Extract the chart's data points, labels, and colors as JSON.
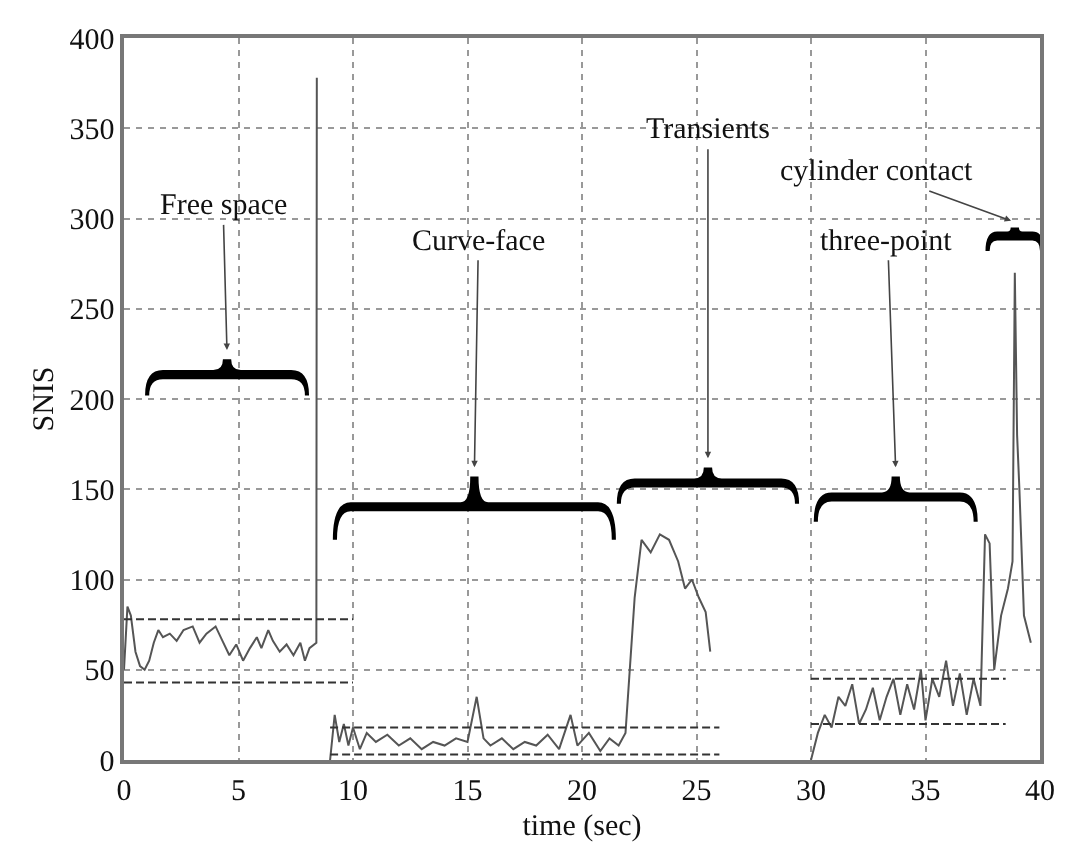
{
  "chart_data": {
    "type": "line",
    "xlabel": "time (sec)",
    "ylabel": "SNIS",
    "xlim": [
      0,
      40
    ],
    "xticks": [
      0,
      5,
      10,
      15,
      20,
      25,
      30,
      35,
      40
    ],
    "ylim": [
      0,
      400
    ],
    "yticks": [
      0,
      50,
      100,
      150,
      200,
      250,
      300,
      350,
      400
    ],
    "grid": true,
    "marker": "none",
    "series": [
      {
        "color": "#555555",
        "line_style": "solid",
        "x": [
          0,
          0.15,
          0.3,
          0.5,
          0.7,
          0.9,
          1.1,
          1.3,
          1.5,
          1.7,
          2,
          2.3,
          2.6,
          3,
          3.3,
          3.6,
          4,
          4.3,
          4.6,
          4.9,
          5.2,
          5.5,
          5.8,
          6,
          6.3,
          6.5,
          6.8,
          7.1,
          7.4,
          7.7,
          7.9,
          8.1,
          8.4,
          8.42,
          8.7,
          9,
          9.2,
          9.4,
          9.6,
          9.8,
          10,
          10.3,
          10.6,
          11,
          11.5,
          12,
          12.5,
          13,
          13.5,
          14,
          14.5,
          15,
          15.4,
          15.7,
          16,
          16.5,
          17,
          17.5,
          18,
          18.5,
          19,
          19.5,
          19.8,
          20.3,
          20.8,
          21.2,
          21.6,
          21.9,
          22.3,
          22.6,
          23,
          23.4,
          23.8,
          24.2,
          24.5,
          24.8,
          25.1,
          25.4,
          25.6,
          28,
          30,
          30.3,
          30.6,
          30.9,
          31.2,
          31.5,
          31.8,
          32.1,
          32.4,
          32.7,
          33,
          33.3,
          33.6,
          33.9,
          34.2,
          34.5,
          34.8,
          35,
          35.3,
          35.6,
          35.9,
          36.2,
          36.5,
          36.8,
          37.1,
          37.4,
          37.6,
          37.8,
          38,
          38.3,
          38.6,
          38.8,
          38.9,
          39,
          39.1,
          39.3,
          39.6
        ],
        "values": [
          50,
          85,
          80,
          60,
          52,
          50,
          55,
          65,
          72,
          68,
          70,
          66,
          72,
          74,
          65,
          70,
          74,
          66,
          58,
          64,
          55,
          62,
          68,
          62,
          72,
          66,
          60,
          64,
          58,
          65,
          55,
          62,
          65,
          378,
          null,
          0,
          25,
          10,
          20,
          8,
          18,
          6,
          15,
          10,
          14,
          8,
          12,
          6,
          10,
          8,
          12,
          10,
          35,
          12,
          8,
          12,
          6,
          10,
          8,
          14,
          6,
          25,
          8,
          15,
          5,
          12,
          8,
          15,
          90,
          122,
          115,
          125,
          122,
          110,
          95,
          100,
          90,
          82,
          60,
          null,
          0,
          15,
          25,
          18,
          35,
          30,
          42,
          20,
          28,
          40,
          22,
          35,
          45,
          25,
          42,
          28,
          50,
          22,
          45,
          35,
          55,
          30,
          48,
          25,
          45,
          30,
          125,
          120,
          50,
          80,
          95,
          110,
          270,
          180,
          150,
          80,
          65
        ]
      },
      {
        "color": "#333333",
        "line_style": "dashed",
        "x": [
          0,
          10
        ],
        "values": [
          78,
          78
        ]
      },
      {
        "color": "#333333",
        "line_style": "dashed",
        "x": [
          0,
          10
        ],
        "values": [
          43,
          43
        ]
      },
      {
        "color": "#333333",
        "line_style": "dashed",
        "x": [
          9,
          26
        ],
        "values": [
          18,
          18
        ]
      },
      {
        "color": "#333333",
        "line_style": "dashed",
        "x": [
          9,
          26
        ],
        "values": [
          3,
          3
        ]
      },
      {
        "color": "#333333",
        "line_style": "dashed",
        "x": [
          30,
          38.5
        ],
        "values": [
          45,
          45
        ]
      },
      {
        "color": "#333333",
        "line_style": "dashed",
        "x": [
          30,
          38.5
        ],
        "values": [
          20,
          20
        ]
      }
    ],
    "annotations": [
      "Free space",
      "Curve-face",
      "Transients",
      "cylinder contact",
      "three-point"
    ]
  }
}
